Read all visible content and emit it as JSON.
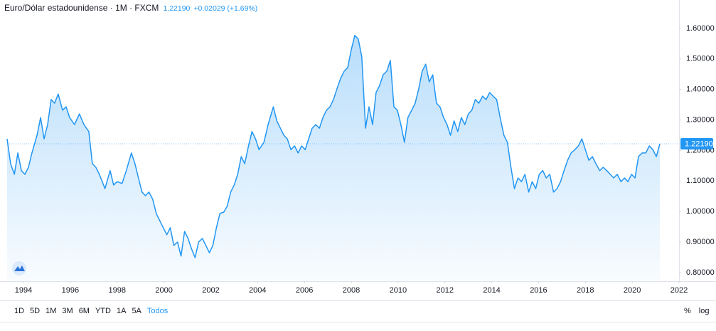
{
  "chart_data": {
    "type": "area",
    "title": "Euro/Dólar estadounidense · 1M · FXCM",
    "last_price": {
      "value": 1.2219,
      "label": "1.22190"
    },
    "change": "+0.02029 (+1.69%)",
    "color": "#2196f3",
    "x": [
      1993.3,
      1993.45,
      1993.61,
      1993.76,
      1993.91,
      1994.06,
      1994.21,
      1994.36,
      1994.58,
      1994.73,
      1994.88,
      1995.03,
      1995.18,
      1995.33,
      1995.48,
      1995.67,
      1995.82,
      1995.97,
      1996.18,
      1996.39,
      1996.58,
      1996.79,
      1996.94,
      1997.09,
      1997.24,
      1997.48,
      1997.7,
      1997.85,
      1998.0,
      1998.21,
      1998.39,
      1998.61,
      1998.76,
      1998.91,
      1999.06,
      1999.21,
      1999.36,
      1999.52,
      1999.67,
      1999.82,
      1999.97,
      2000.12,
      2000.27,
      2000.42,
      2000.58,
      2000.73,
      2000.88,
      2001.03,
      2001.18,
      2001.33,
      2001.48,
      2001.64,
      2001.79,
      2001.94,
      2002.09,
      2002.24,
      2002.39,
      2002.55,
      2002.7,
      2002.85,
      2003.0,
      2003.15,
      2003.3,
      2003.45,
      2003.61,
      2003.76,
      2003.91,
      2004.06,
      2004.27,
      2004.45,
      2004.67,
      2004.82,
      2004.97,
      2005.12,
      2005.27,
      2005.42,
      2005.58,
      2005.73,
      2005.88,
      2006.03,
      2006.18,
      2006.33,
      2006.48,
      2006.64,
      2006.79,
      2006.94,
      2007.09,
      2007.24,
      2007.39,
      2007.55,
      2007.7,
      2007.85,
      2008.0,
      2008.15,
      2008.3,
      2008.45,
      2008.61,
      2008.76,
      2008.91,
      2009.06,
      2009.21,
      2009.36,
      2009.52,
      2009.67,
      2009.82,
      2009.97,
      2010.12,
      2010.27,
      2010.42,
      2010.58,
      2010.73,
      2010.88,
      2011.03,
      2011.18,
      2011.33,
      2011.48,
      2011.64,
      2011.79,
      2011.94,
      2012.09,
      2012.24,
      2012.39,
      2012.55,
      2012.7,
      2012.85,
      2013.0,
      2013.15,
      2013.3,
      2013.45,
      2013.61,
      2013.76,
      2013.91,
      2014.06,
      2014.21,
      2014.36,
      2014.52,
      2014.67,
      2014.82,
      2014.97,
      2015.12,
      2015.27,
      2015.42,
      2015.58,
      2015.73,
      2015.88,
      2016.03,
      2016.18,
      2016.33,
      2016.48,
      2016.64,
      2016.79,
      2016.94,
      2017.09,
      2017.24,
      2017.39,
      2017.55,
      2017.7,
      2017.85,
      2018.0,
      2018.15,
      2018.3,
      2018.45,
      2018.61,
      2018.76,
      2018.91,
      2019.06,
      2019.21,
      2019.36,
      2019.52,
      2019.67,
      2019.82,
      2019.97,
      2020.12,
      2020.27,
      2020.42,
      2020.58,
      2020.73,
      2020.88,
      2021.03,
      2021.18
    ],
    "values": [
      1.238,
      1.157,
      1.122,
      1.192,
      1.134,
      1.122,
      1.145,
      1.192,
      1.25,
      1.308,
      1.238,
      1.285,
      1.367,
      1.355,
      1.385,
      1.332,
      1.343,
      1.308,
      1.285,
      1.32,
      1.285,
      1.262,
      1.157,
      1.145,
      1.122,
      1.075,
      1.134,
      1.087,
      1.098,
      1.092,
      1.134,
      1.192,
      1.157,
      1.11,
      1.064,
      1.052,
      1.064,
      1.04,
      0.994,
      0.97,
      0.947,
      0.924,
      0.947,
      0.889,
      0.9,
      0.854,
      0.935,
      0.912,
      0.877,
      0.849,
      0.9,
      0.912,
      0.889,
      0.865,
      0.889,
      0.947,
      0.994,
      0.998,
      1.017,
      1.064,
      1.087,
      1.122,
      1.18,
      1.157,
      1.215,
      1.262,
      1.238,
      1.203,
      1.227,
      1.285,
      1.343,
      1.297,
      1.273,
      1.25,
      1.238,
      1.203,
      1.215,
      1.192,
      1.215,
      1.203,
      1.238,
      1.273,
      1.285,
      1.273,
      1.308,
      1.332,
      1.343,
      1.367,
      1.402,
      1.437,
      1.46,
      1.472,
      1.53,
      1.577,
      1.565,
      1.507,
      1.273,
      1.343,
      1.285,
      1.39,
      1.413,
      1.448,
      1.46,
      1.495,
      1.343,
      1.332,
      1.285,
      1.227,
      1.308,
      1.332,
      1.355,
      1.402,
      1.46,
      1.483,
      1.425,
      1.448,
      1.355,
      1.343,
      1.308,
      1.285,
      1.25,
      1.297,
      1.262,
      1.308,
      1.285,
      1.32,
      1.332,
      1.367,
      1.355,
      1.378,
      1.367,
      1.39,
      1.378,
      1.367,
      1.308,
      1.25,
      1.227,
      1.145,
      1.075,
      1.11,
      1.098,
      1.122,
      1.064,
      1.098,
      1.075,
      1.122,
      1.134,
      1.11,
      1.122,
      1.064,
      1.075,
      1.098,
      1.134,
      1.168,
      1.192,
      1.203,
      1.215,
      1.238,
      1.203,
      1.168,
      1.18,
      1.157,
      1.134,
      1.145,
      1.134,
      1.122,
      1.11,
      1.122,
      1.098,
      1.11,
      1.098,
      1.122,
      1.11,
      1.18,
      1.192,
      1.192,
      1.215,
      1.203,
      1.18,
      1.2219
    ],
    "xlim": [
      1993.3,
      2022
    ],
    "xticks": [
      1994,
      1996,
      1998,
      2000,
      2002,
      2004,
      2006,
      2008,
      2010,
      2012,
      2014,
      2016,
      2018,
      2020,
      2022
    ],
    "ylim": [
      0.772,
      1.693
    ],
    "yticks": [
      {
        "value": 0.8,
        "label": "0.80000"
      },
      {
        "value": 0.9,
        "label": "0.90000"
      },
      {
        "value": 1.0,
        "label": "1.00000"
      },
      {
        "value": 1.1,
        "label": "1.10000"
      },
      {
        "value": 1.2,
        "label": "1.20000"
      },
      {
        "value": 1.3,
        "label": "1.30000"
      },
      {
        "value": 1.4,
        "label": "1.40000"
      },
      {
        "value": 1.5,
        "label": "1.50000"
      },
      {
        "value": 1.6,
        "label": "1.60000"
      }
    ],
    "grid": false
  },
  "toolbar": {
    "ranges": [
      "1D",
      "5D",
      "1M",
      "3M",
      "6M",
      "YTD",
      "1A",
      "5A",
      "Todos"
    ],
    "active": 8,
    "options": [
      "%",
      "log"
    ]
  }
}
